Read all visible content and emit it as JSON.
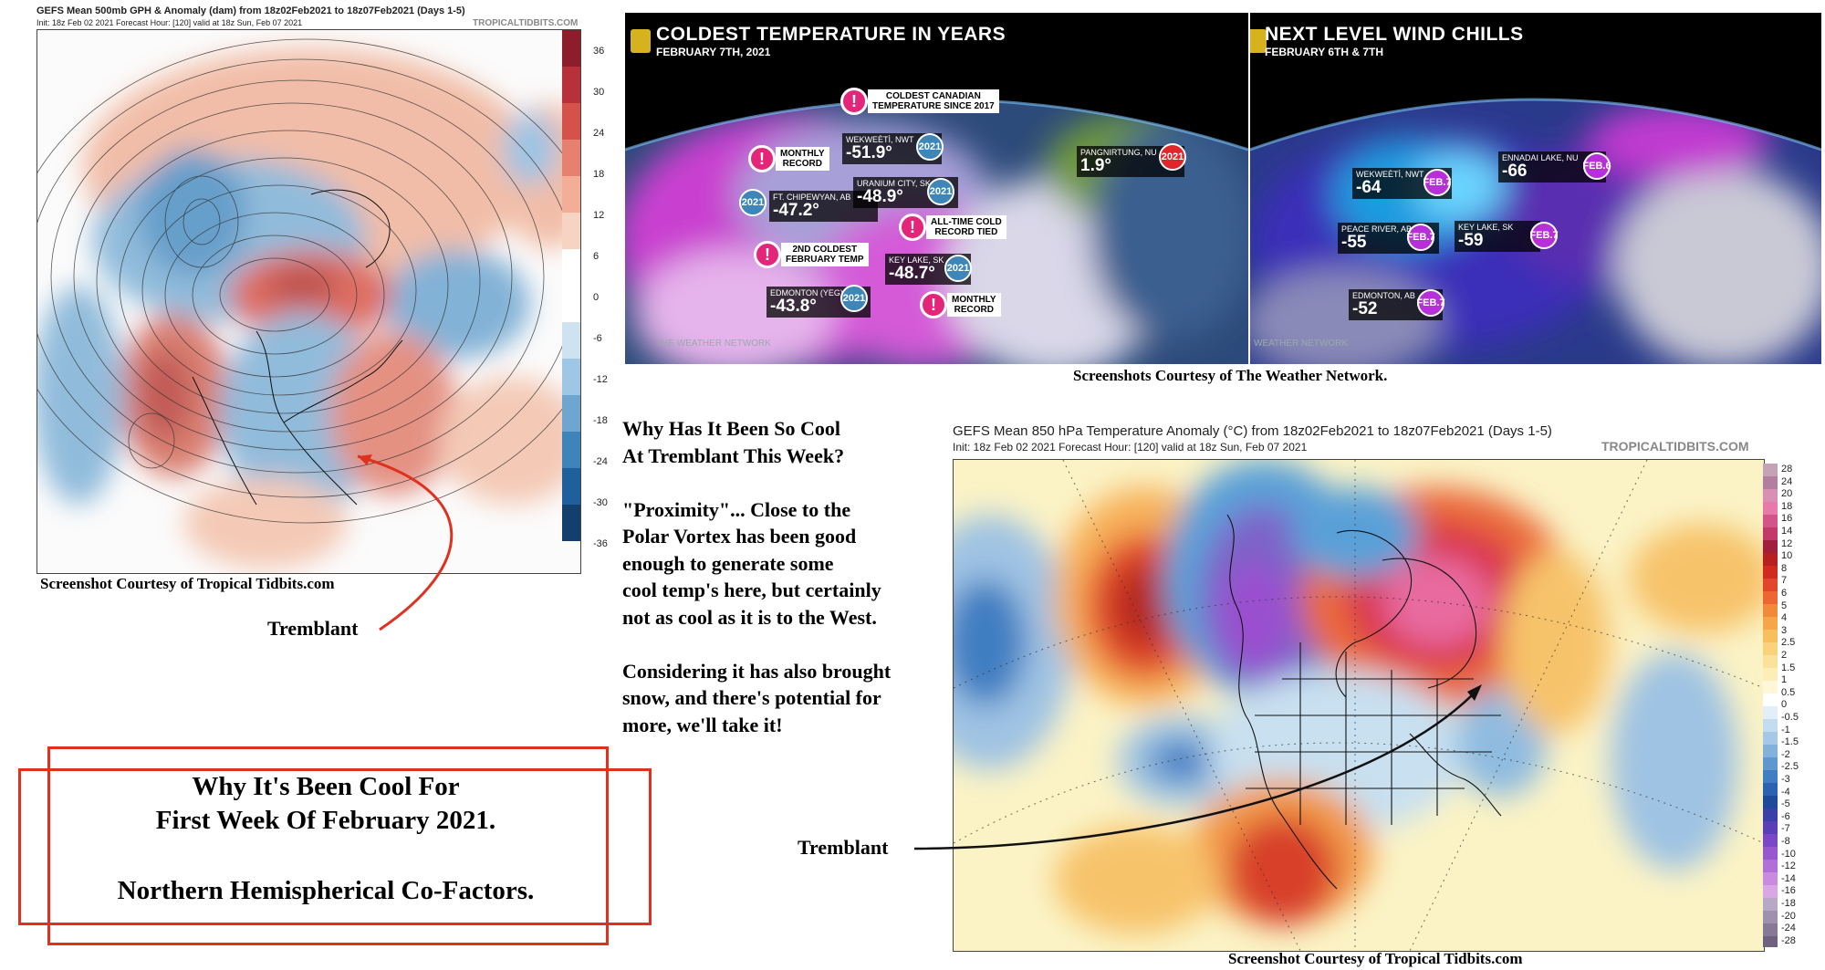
{
  "gph_map": {
    "title": "GEFS Mean 500mb GPH & Anomaly (dam) from 18z02Feb2021 to 18z07Feb2021 (Days 1-5)",
    "subtitle": "Init: 18z Feb 02 2021   Forecast Hour: [120]   valid at 18z Sun, Feb 07 2021",
    "watermark": "TROPICALTIDBITS.COM",
    "legend_labels": [
      "36",
      "30",
      "24",
      "18",
      "12",
      "6",
      "0",
      "-6",
      "-12",
      "-18",
      "-24",
      "-30",
      "-36"
    ],
    "caption": "Screenshot Courtesy of Tropical Tidbits.com",
    "arrow_label": "Tremblant"
  },
  "twn_left": {
    "title": "COLDEST TEMPERATURE IN YEARS",
    "date": "FEBRUARY 7TH, 2021",
    "watermark": "THE WEATHER NETWORK",
    "alerts": [
      {
        "l1": "COLDEST CANADIAN",
        "l2": "TEMPERATURE SINCE 2017"
      },
      {
        "l1": "MONTHLY",
        "l2": "RECORD"
      },
      {
        "l1": "ALL-TIME COLD",
        "l2": "RECORD TIED"
      },
      {
        "l1": "2ND COLDEST",
        "l2": "FEBRUARY TEMP"
      },
      {
        "l1": "MONTHLY",
        "l2": "RECORD"
      }
    ],
    "stations": [
      {
        "name": "WEKWEÈTÌ, NWT",
        "value": "-51.9°",
        "badge": "2021"
      },
      {
        "name": "FT. CHIPEWYAN, AB",
        "value": "-47.2°",
        "badge": "2021"
      },
      {
        "name": "URANIUM CITY, SK",
        "value": "-48.9°",
        "badge": "2021"
      },
      {
        "name": "KEY LAKE, SK",
        "value": "-48.7°",
        "badge": "2021"
      },
      {
        "name": "EDMONTON (YEG)",
        "value": "-43.8°",
        "badge": "2021"
      },
      {
        "name": "PANGNIRTUNG, NU",
        "value": "1.9°",
        "badge": "2021"
      }
    ]
  },
  "twn_right": {
    "title": "NEXT LEVEL WIND CHILLS",
    "date": "FEBRUARY 6TH & 7TH",
    "watermark": "WEATHER NETWORK",
    "stations": [
      {
        "name": "WEKWEÈTÌ, NWT",
        "value": "-64",
        "badge": "FEB.7"
      },
      {
        "name": "ENNADAI LAKE, NU",
        "value": "-66",
        "badge": "FEB.6"
      },
      {
        "name": "PEACE RIVER, AB",
        "value": "-55",
        "badge": "FEB.7"
      },
      {
        "name": "KEY LAKE, SK",
        "value": "-59",
        "badge": "FEB.7"
      },
      {
        "name": "EDMONTON, AB",
        "value": "-52",
        "badge": "FEB.7"
      }
    ]
  },
  "twn_caption": "Screenshots Courtesy of The Weather Network.",
  "explanation": {
    "q1": "Why Has It Been So Cool",
    "q2": "At Tremblant This Week?",
    "p1": [
      "\"Proximity\"... Close to the",
      "Polar Vortex has been good",
      "enough to generate some",
      "cool temp's here, but certainly",
      "not as cool as it is to the West."
    ],
    "p2": [
      "Considering it has also brought",
      "snow, and there's potential for",
      "more, we'll take it!"
    ]
  },
  "temp_map": {
    "title": "GEFS Mean 850 hPa Temperature Anomaly (°C) from 18z02Feb2021 to 18z07Feb2021 (Days 1-5)",
    "subtitle": "Init: 18z Feb 02 2021   Forecast Hour: [120]   valid at 18z Sun, Feb 07 2021",
    "watermark": "TROPICALTIDBITS.COM",
    "legend_labels": [
      "28",
      "24",
      "20",
      "18",
      "16",
      "14",
      "12",
      "10",
      "8",
      "7",
      "6",
      "5",
      "4",
      "3",
      "2.5",
      "2",
      "1.5",
      "1",
      "0.5",
      "0",
      "-0.5",
      "-1",
      "-1.5",
      "-2",
      "-2.5",
      "-3",
      "-4",
      "-5",
      "-6",
      "-7",
      "-8",
      "-10",
      "-12",
      "-14",
      "-16",
      "-18",
      "-20",
      "-24",
      "-28"
    ],
    "caption": "Screenshot Courtesy of Tropical Tidbits.com",
    "arrow_label": "Tremblant"
  },
  "headline": {
    "line1": "Why It's Been Cool For",
    "line2": "First Week Of February 2021.",
    "line3": "Northern Hemispherical Co-Factors."
  }
}
